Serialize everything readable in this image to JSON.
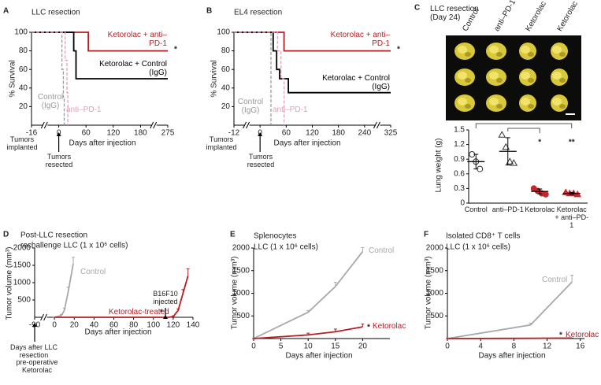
{
  "chart_data": [
    {
      "type": "line",
      "label": "A",
      "title": "LLC resection",
      "xlabel": "Days after injection",
      "ylabel": "% Survival",
      "xlim": [
        -16,
        275
      ],
      "xticks": [
        -16,
        0,
        60,
        120,
        180,
        275
      ],
      "broken_x": true,
      "ylim": [
        0,
        100
      ],
      "yticks": [
        20,
        40,
        60,
        80,
        100
      ],
      "annotations": [
        "Tumors implanted",
        "Tumors resected"
      ],
      "series": [
        {
          "name": "Ketorolac + anti–PD-1",
          "color": "#b41f24",
          "marker_text": "*",
          "x": [
            -16,
            65,
            65,
            275
          ],
          "values": [
            100,
            100,
            80,
            80
          ]
        },
        {
          "name": "Ketorolac + Control (IgG)",
          "color": "#000000",
          "x": [
            -16,
            33,
            33,
            38,
            38,
            275
          ],
          "values": [
            100,
            100,
            80,
            80,
            50,
            50
          ]
        },
        {
          "name": "Control (IgG)",
          "color": "#9a9a9a",
          "dash": true,
          "x": [
            -16,
            7,
            7,
            10,
            10,
            12,
            12
          ],
          "values": [
            100,
            100,
            60,
            60,
            30,
            30,
            0
          ]
        },
        {
          "name": "anti–PD-1",
          "color": "#e3a1b5",
          "dash": true,
          "x": [
            -16,
            14,
            14,
            18,
            18,
            20,
            20
          ],
          "values": [
            100,
            100,
            70,
            70,
            35,
            35,
            0
          ]
        }
      ]
    },
    {
      "type": "line",
      "label": "B",
      "title": "EL4 resection",
      "xlabel": "Days after injection",
      "ylabel": "% Survival",
      "xlim": [
        -12,
        325
      ],
      "xticks": [
        -12,
        0,
        60,
        120,
        180,
        240,
        325
      ],
      "broken_x": true,
      "ylim": [
        0,
        100
      ],
      "yticks": [
        20,
        40,
        60,
        80,
        100
      ],
      "annotations": [
        "Tumors implanted",
        "Tumors resected"
      ],
      "series": [
        {
          "name": "Ketorolac + anti–PD-1",
          "color": "#b41f24",
          "marker_text": "*",
          "x": [
            -12,
            55,
            55,
            325
          ],
          "values": [
            100,
            100,
            80,
            80
          ]
        },
        {
          "name": "Ketorolac + Control (IgG)",
          "color": "#000000",
          "x": [
            -12,
            30,
            30,
            38,
            38,
            45,
            45,
            65,
            65,
            325
          ],
          "values": [
            100,
            100,
            80,
            80,
            60,
            60,
            50,
            50,
            35,
            35
          ]
        },
        {
          "name": "Control (IgG)",
          "color": "#9a9a9a",
          "dash": true,
          "x": [
            -12,
            25,
            25
          ],
          "values": [
            100,
            100,
            0
          ]
        },
        {
          "name": "anti–PD-1",
          "color": "#e3a1b5",
          "dash": true,
          "x": [
            -12,
            40,
            40,
            48,
            48,
            55,
            55
          ],
          "values": [
            100,
            100,
            80,
            80,
            50,
            50,
            0
          ]
        }
      ]
    },
    {
      "type": "dotplot",
      "label": "C",
      "title": "LLC resection (Day 24)",
      "ylabel": "Lung weight (g)",
      "ylim": [
        0,
        1.5
      ],
      "yticks": [
        0,
        0.3,
        0.6,
        0.9,
        1.2,
        1.5
      ],
      "groups": [
        {
          "name": "Control",
          "color": "#333333",
          "marker": "circle",
          "filled": false,
          "values": [
            1.0,
            0.85,
            0.7
          ],
          "mean": 0.85,
          "sd": 0.15
        },
        {
          "name": "anti–PD-1",
          "color": "#333333",
          "marker": "triangle",
          "filled": false,
          "values": [
            1.4,
            1.15,
            0.85,
            0.82
          ],
          "mean": 1.06,
          "sd": 0.28
        },
        {
          "name": "Ketorolac",
          "color": "#c0282d",
          "marker": "circle",
          "filled": true,
          "values": [
            0.3,
            0.25,
            0.2,
            0.18
          ],
          "mean": 0.24,
          "sd": 0.05,
          "significance": "*"
        },
        {
          "name": "Ketorolac + anti–PD-1",
          "color": "#c0282d",
          "marker": "triangle",
          "filled": true,
          "values": [
            0.22,
            0.2,
            0.2,
            0.18
          ],
          "mean": 0.2,
          "sd": 0.02,
          "significance": "**"
        }
      ]
    },
    {
      "type": "line",
      "label": "D",
      "title": "Post-LLC resection",
      "subtitle": "rechallenge LLC (1 x 10⁶ cells)",
      "xlabel": "Days after injection",
      "ylabel": "Tumor volume (mm³)",
      "xlim": [
        -90,
        140
      ],
      "xticks": [
        -90,
        0,
        20,
        40,
        60,
        80,
        100,
        120,
        140
      ],
      "broken_x": true,
      "ylim": [
        0,
        2000
      ],
      "yticks": [
        500,
        1000,
        1500,
        2000
      ],
      "annotations": [
        "Days after LLC resection",
        "pre-operative Ketorolac",
        "B16F10 injected"
      ],
      "series": [
        {
          "name": "Control",
          "color": "#a8a8a8",
          "x": [
            0,
            7,
            10,
            14,
            19
          ],
          "values": [
            0,
            50,
            200,
            750,
            1550
          ],
          "errors": [
            0,
            30,
            60,
            120,
            180
          ]
        },
        {
          "name": "Ketorolac-treated",
          "color": "#b41f24",
          "marker_text": "*",
          "x": [
            0,
            115,
            120,
            125,
            130,
            135
          ],
          "values": [
            0,
            0,
            20,
            200,
            700,
            1200
          ],
          "errors": [
            0,
            0,
            20,
            40,
            100,
            200
          ]
        }
      ]
    },
    {
      "type": "line",
      "label": "E",
      "title": "Splenocytes",
      "subtitle": "LLC (1 x 10⁶ cells)",
      "xlabel": "Days after injection",
      "ylabel": "Tumor volume (mm³)",
      "xlim": [
        0,
        25
      ],
      "xticks": [
        0,
        5,
        10,
        15,
        20
      ],
      "ylim": [
        0,
        2000
      ],
      "yticks": [
        500,
        1000,
        1500,
        2000
      ],
      "series": [
        {
          "name": "Control",
          "color": "#a8a8a8",
          "x": [
            0,
            10,
            15,
            20
          ],
          "values": [
            0,
            580,
            1150,
            1920
          ],
          "errors": [
            0,
            40,
            90,
            90
          ]
        },
        {
          "name": "Ketorolac",
          "color": "#b41f24",
          "marker_text": "*",
          "x": [
            0,
            10,
            15,
            20
          ],
          "values": [
            0,
            80,
            150,
            260
          ],
          "errors": [
            0,
            40,
            60,
            60
          ]
        }
      ]
    },
    {
      "type": "line",
      "label": "F",
      "title": "Isolated CD8⁺ T cells",
      "subtitle": "LLC (1 x 10⁶ cells)",
      "xlabel": "Days after injection",
      "ylabel": "Tumor volume (mm³)",
      "xlim": [
        0,
        16.5
      ],
      "xticks": [
        0,
        4,
        8,
        12,
        16
      ],
      "ylim": [
        0,
        2000
      ],
      "yticks": [
        500,
        1000,
        1500,
        2000
      ],
      "series": [
        {
          "name": "Control",
          "color": "#a8a8a8",
          "x": [
            0,
            10,
            15
          ],
          "values": [
            0,
            300,
            1250
          ],
          "errors": [
            0,
            40,
            150
          ]
        },
        {
          "name": "Ketorolac",
          "color": "#b41f24",
          "marker_text": "*",
          "x": [
            0,
            10,
            15
          ],
          "values": [
            0,
            5,
            10
          ],
          "errors": [
            0,
            0,
            0
          ]
        }
      ]
    }
  ]
}
